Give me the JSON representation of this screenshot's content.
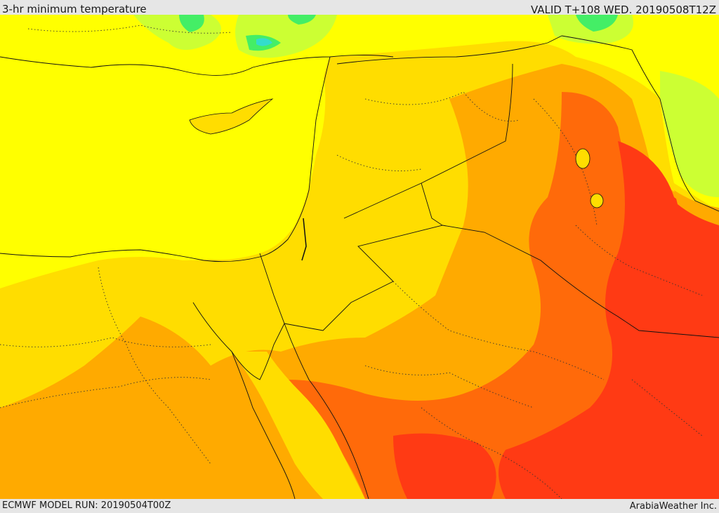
{
  "header": {
    "title": "3-hr minimum temperature",
    "valid": "VALID T+108 WED. 20190508T12Z"
  },
  "footer": {
    "model_run": "ECMWF MODEL RUN: 20190504T00Z",
    "credit": "ArabiaWeather Inc."
  },
  "colors": {
    "sea_and_cool": "#ffff00",
    "mild": "#ffdd00",
    "warm": "#ffaa00",
    "hot": "#ff6a0a",
    "very_hot": "#ff3a14",
    "cool_green": "#ccff33",
    "cold_green": "#44ee66",
    "cold_cyan": "#33ddcc",
    "border_line": "#111111"
  }
}
